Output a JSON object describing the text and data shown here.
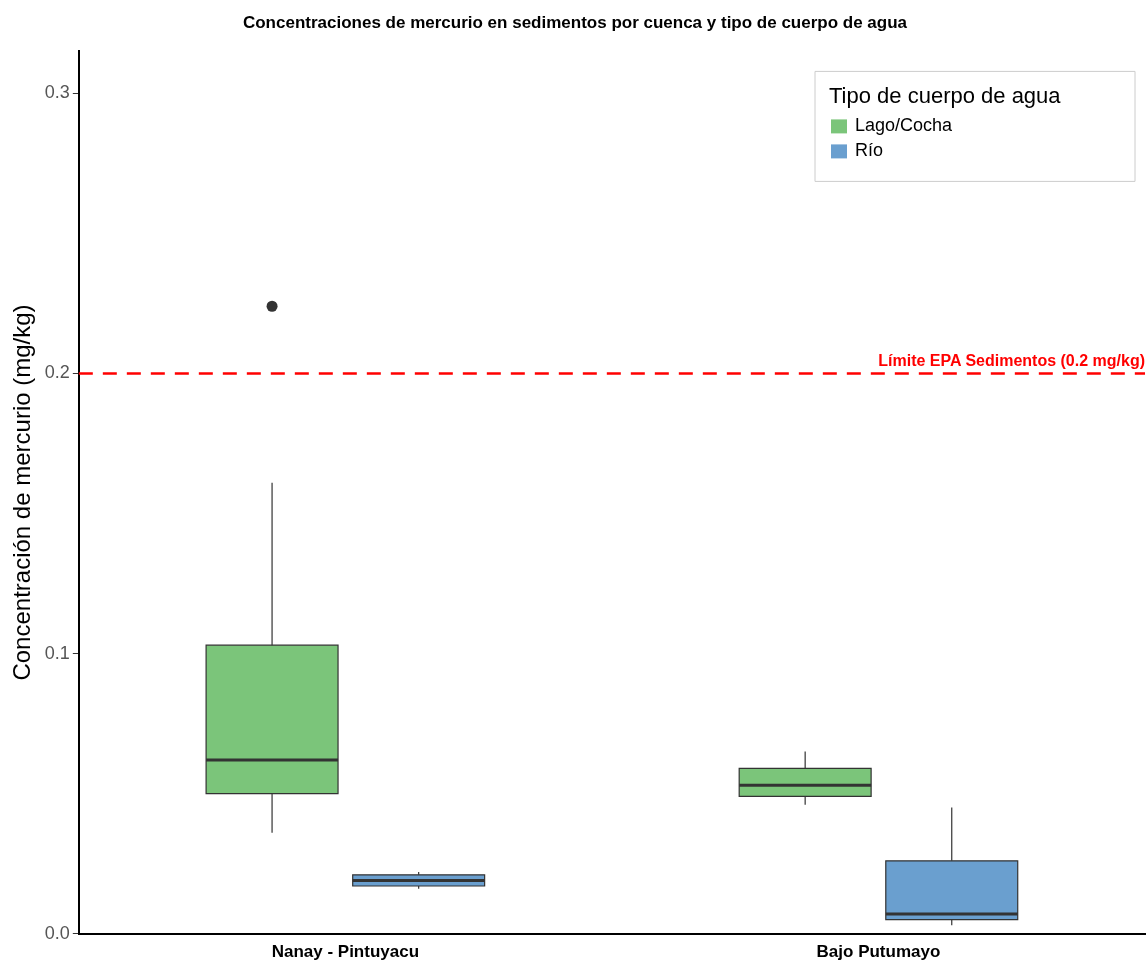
{
  "chart_data": {
    "type": "box",
    "title": "Concentraciones de mercurio en sedimentos por cuenca y tipo de cuerpo de agua",
    "ylabel": "Concentración de mercurio (mg/kg)",
    "legend_title": "Tipo de cuerpo de agua",
    "categories": [
      "Nanay - Pintuyacu",
      "Bajo Putumayo"
    ],
    "series": [
      {
        "name": "Lago/Cocha",
        "color": "#7bc57a",
        "boxes": [
          {
            "low": 0.036,
            "q1": 0.05,
            "median": 0.062,
            "q3": 0.103,
            "high": 0.161,
            "outliers": [
              0.224
            ]
          },
          {
            "low": 0.046,
            "q1": 0.049,
            "median": 0.053,
            "q3": 0.059,
            "high": 0.065
          }
        ]
      },
      {
        "name": "Río",
        "color": "#6a9fcf",
        "boxes": [
          {
            "low": 0.016,
            "q1": 0.017,
            "median": 0.019,
            "q3": 0.021,
            "high": 0.022
          },
          {
            "low": 0.003,
            "q1": 0.005,
            "median": 0.007,
            "q3": 0.026,
            "high": 0.045
          }
        ]
      }
    ],
    "ylim": [
      0,
      0.315
    ],
    "yticks": [
      {
        "value": 0,
        "label": "0.0"
      },
      0.1,
      0.2,
      0.3
    ],
    "ref_lines": [
      {
        "axis": "y",
        "value": 0.2,
        "label": "Límite EPA Sedimentos (0.2 mg/kg)",
        "color": "#ff0000",
        "line_style": "dashed"
      }
    ],
    "grid": false,
    "legend": "top right"
  }
}
